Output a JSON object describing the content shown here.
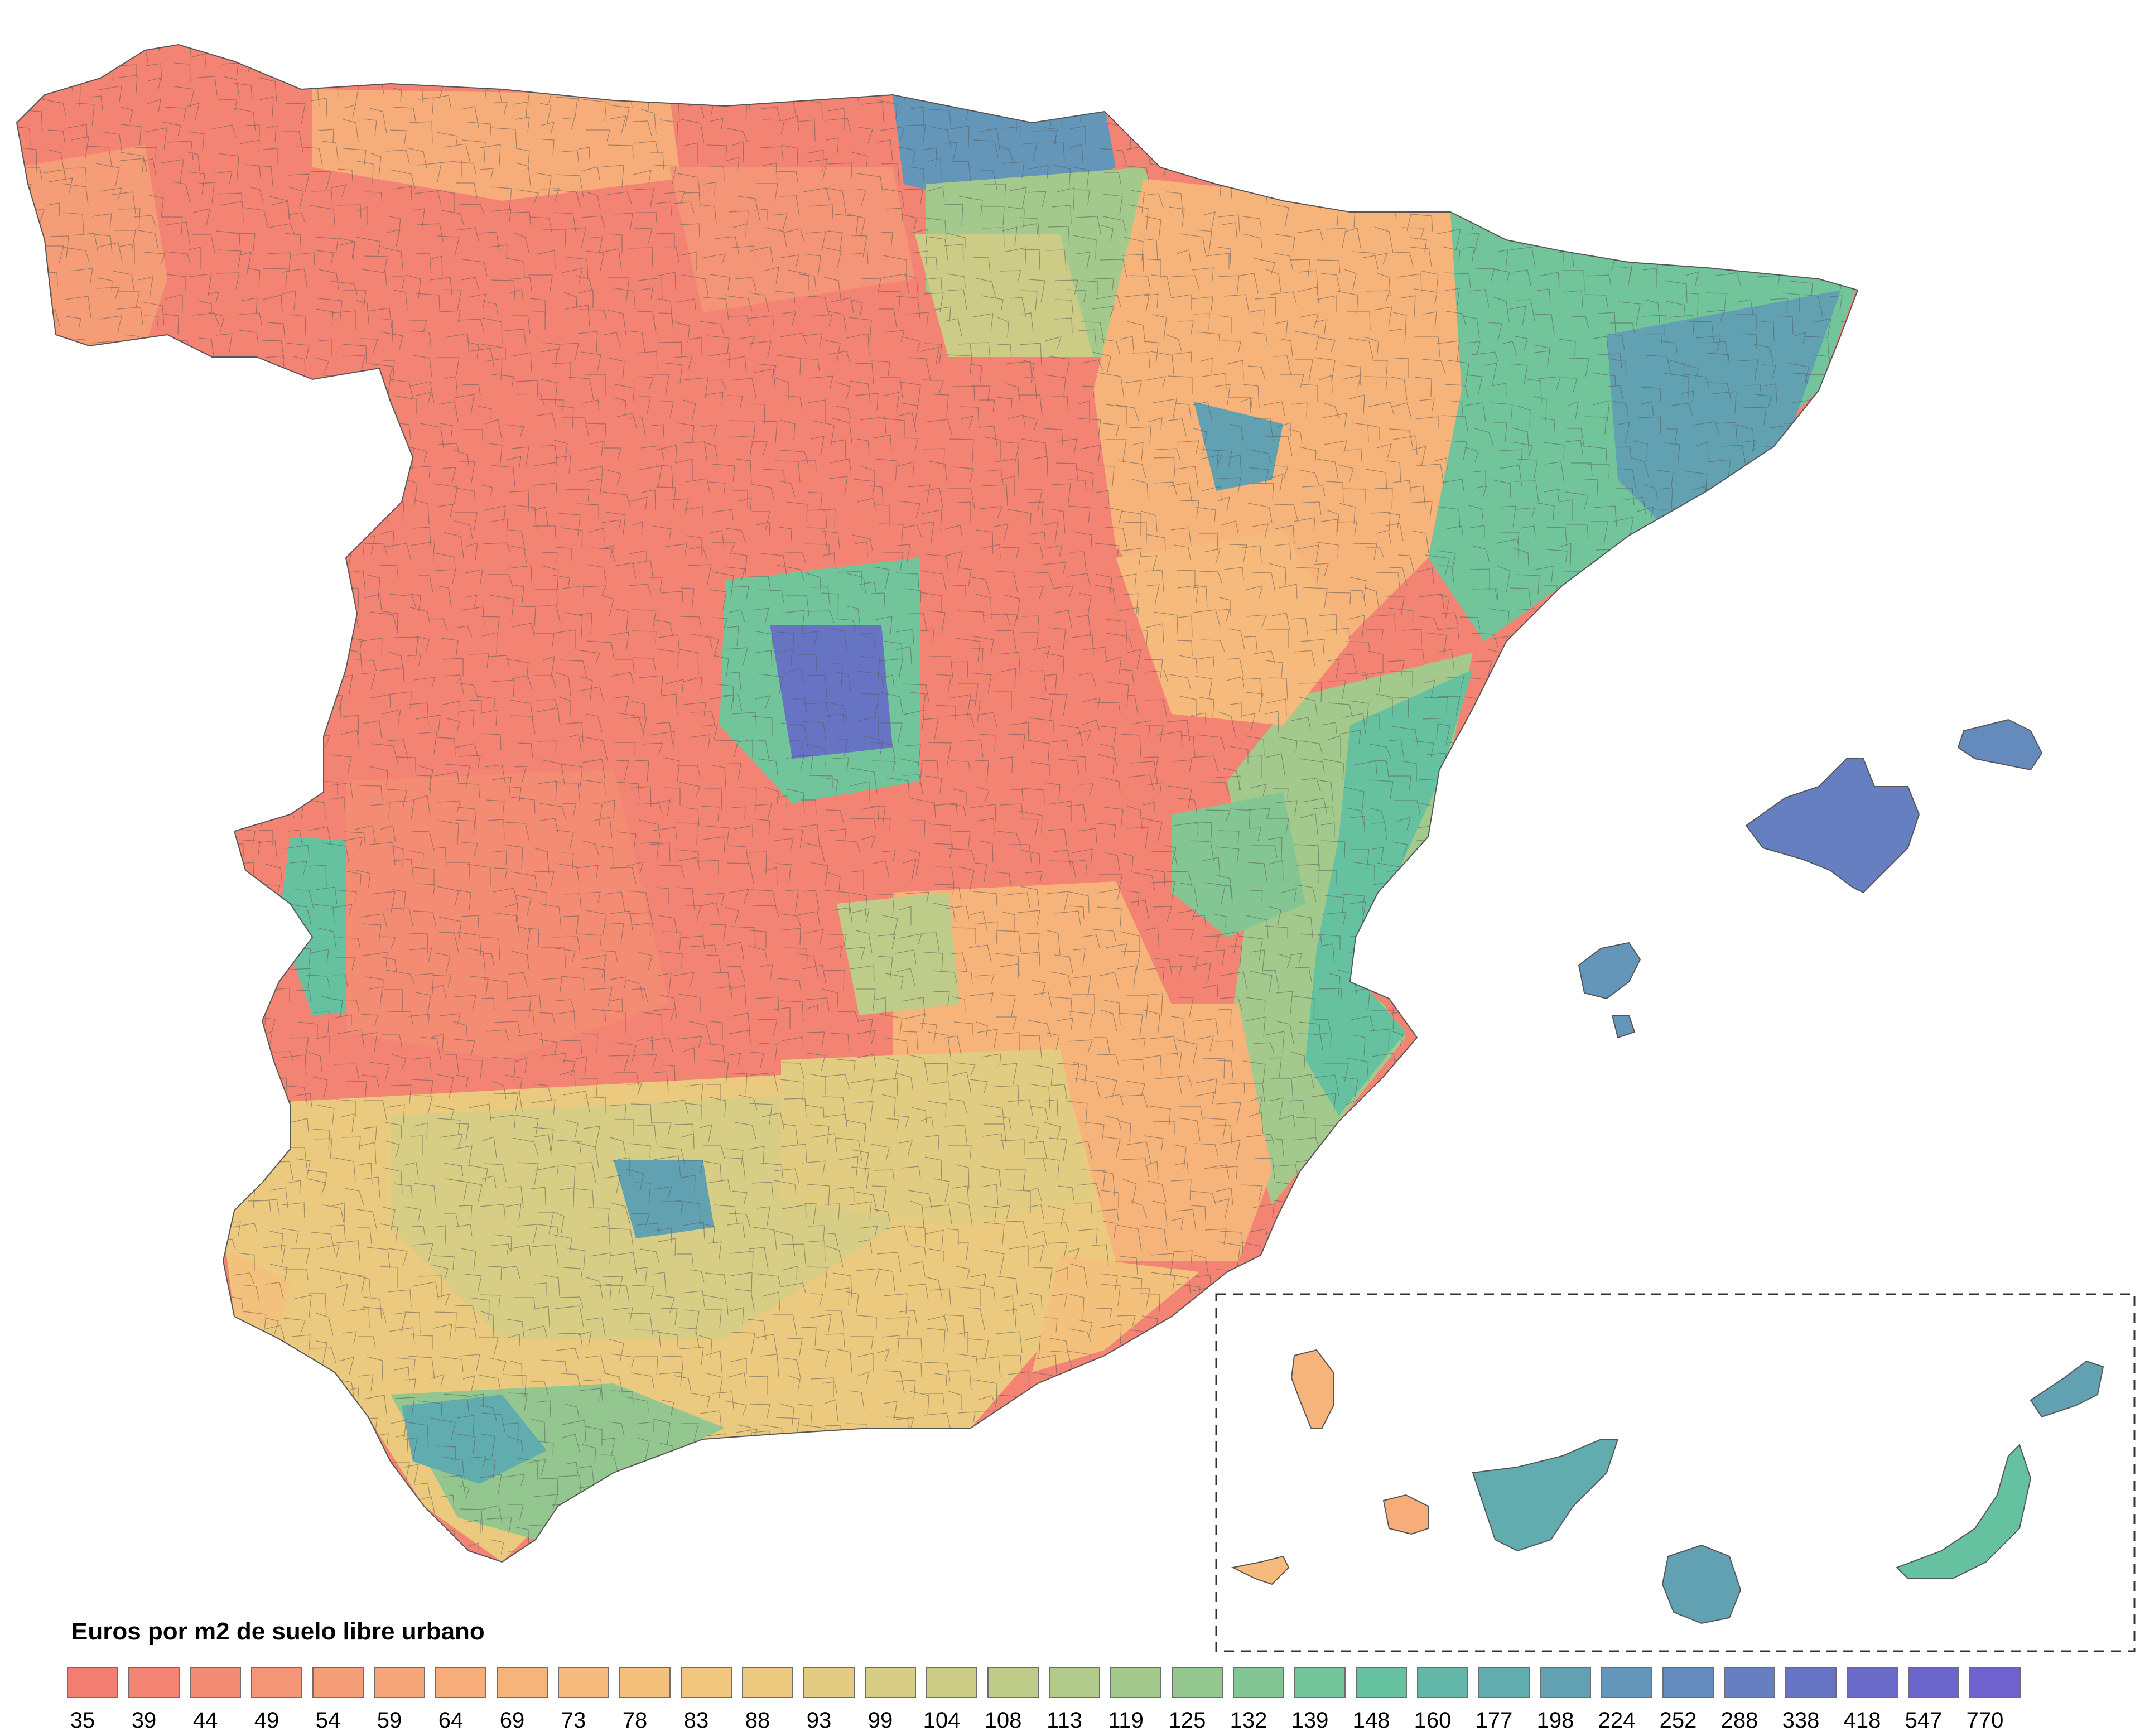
{
  "legend": {
    "title": "Euros por m2 de suelo libre urbano",
    "breaks": [
      {
        "value": "35",
        "color": "#f27d72"
      },
      {
        "value": "39",
        "color": "#f38474"
      },
      {
        "value": "44",
        "color": "#f48c74"
      },
      {
        "value": "49",
        "color": "#f59577"
      },
      {
        "value": "54",
        "color": "#f59d77"
      },
      {
        "value": "59",
        "color": "#f6a579"
      },
      {
        "value": "64",
        "color": "#f6ad79"
      },
      {
        "value": "69",
        "color": "#f6b47a"
      },
      {
        "value": "73",
        "color": "#f6bb7c"
      },
      {
        "value": "78",
        "color": "#f4c17d"
      },
      {
        "value": "83",
        "color": "#f1c67e"
      },
      {
        "value": "88",
        "color": "#ebc97f"
      },
      {
        "value": "93",
        "color": "#e2cc82"
      },
      {
        "value": "99",
        "color": "#d7cd85"
      },
      {
        "value": "104",
        "color": "#cccc87"
      },
      {
        "value": "108",
        "color": "#bfcc89"
      },
      {
        "value": "113",
        "color": "#b2ca8b"
      },
      {
        "value": "119",
        "color": "#a4c98c"
      },
      {
        "value": "125",
        "color": "#94c78f"
      },
      {
        "value": "132",
        "color": "#84c693"
      },
      {
        "value": "139",
        "color": "#72c59b"
      },
      {
        "value": "148",
        "color": "#66c1a0"
      },
      {
        "value": "160",
        "color": "#62b7a8"
      },
      {
        "value": "177",
        "color": "#61acae"
      },
      {
        "value": "198",
        "color": "#61a1b2"
      },
      {
        "value": "224",
        "color": "#6396b8"
      },
      {
        "value": "252",
        "color": "#658bbd"
      },
      {
        "value": "288",
        "color": "#667fc0"
      },
      {
        "value": "338",
        "color": "#6774c4"
      },
      {
        "value": "418",
        "color": "#6a6bc8"
      },
      {
        "value": "547",
        "color": "#6b65cc"
      },
      {
        "value": "770",
        "color": "#6f62cf"
      }
    ]
  },
  "map": {
    "region": "Spain",
    "inset": "Canary Islands",
    "border_color": "#555555",
    "inset_frame": "dashed"
  }
}
